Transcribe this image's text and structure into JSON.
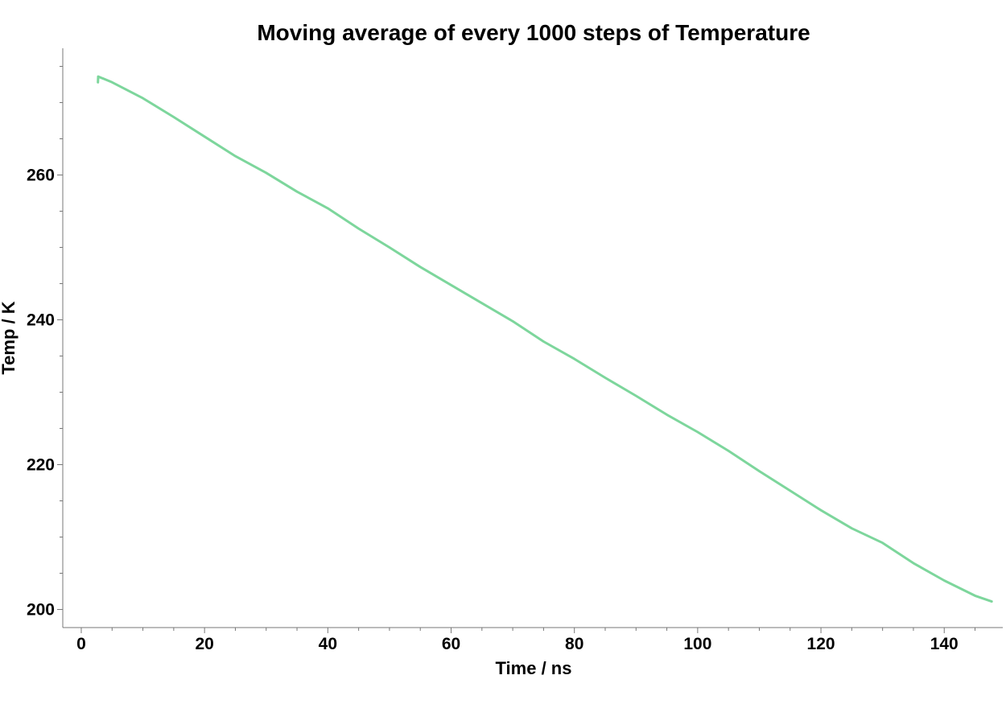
{
  "chart_data": {
    "type": "line",
    "title": "Moving average of every 1000 steps of Temperature",
    "xlabel": "Time / ns",
    "ylabel": "Temp / K",
    "xlim": [
      -3,
      149.5
    ],
    "ylim": [
      197.5,
      277.5
    ],
    "xticks": [
      0,
      20,
      40,
      60,
      80,
      100,
      120,
      140
    ],
    "xticks_minor": [
      5,
      10,
      15,
      25,
      30,
      35,
      45,
      50,
      55,
      65,
      70,
      75,
      85,
      90,
      95,
      105,
      110,
      115,
      125,
      130,
      135,
      145
    ],
    "yticks": [
      200,
      220,
      240,
      260
    ],
    "yticks_minor": [
      205,
      210,
      215,
      225,
      230,
      235,
      245,
      250,
      255,
      265,
      270,
      275
    ],
    "grid": false,
    "series": [
      {
        "color": "#7dd69c",
        "x": [
          2.7,
          2.75,
          5,
          10,
          15,
          20,
          25,
          30,
          35,
          40,
          45,
          50,
          55,
          60,
          65,
          70,
          75,
          80,
          85,
          90,
          95,
          100,
          105,
          110,
          115,
          120,
          125,
          130,
          135,
          140,
          145,
          147.7
        ],
        "y": [
          272.8,
          273.6,
          272.8,
          270.6,
          268.0,
          265.3,
          262.6,
          260.3,
          257.7,
          255.4,
          252.6,
          250.0,
          247.3,
          244.8,
          242.3,
          239.8,
          237.0,
          234.6,
          232.0,
          229.5,
          226.9,
          224.5,
          221.9,
          219.1,
          216.4,
          213.7,
          211.2,
          209.2,
          206.4,
          204.0,
          201.9,
          201.1
        ]
      }
    ]
  }
}
